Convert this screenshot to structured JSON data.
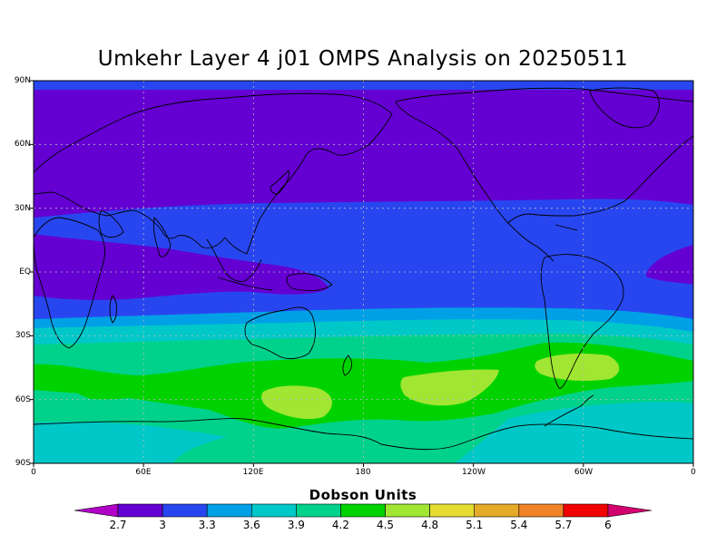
{
  "title": "Umkehr Layer 4 j01 OMPS Analysis on 20250511",
  "lat_labels": [
    "90N",
    "60N",
    "30N",
    "EQ",
    "30S",
    "60S",
    "90S"
  ],
  "lon_labels": [
    "0",
    "60E",
    "120E",
    "180",
    "120W",
    "60W",
    "0"
  ],
  "colorbar": {
    "title": "Dobson Units",
    "ticks": [
      "2.7",
      "3",
      "3.3",
      "3.6",
      "3.9",
      "4.2",
      "4.5",
      "4.8",
      "5.1",
      "5.4",
      "5.7",
      "6"
    ],
    "colors": [
      "#b000c8",
      "#6400d2",
      "#2846f0",
      "#00a0e6",
      "#00c8c8",
      "#00d28c",
      "#00d200",
      "#a0e632",
      "#e6dc32",
      "#e6aa28",
      "#f08228",
      "#f00000",
      "#d2006e"
    ]
  }
}
